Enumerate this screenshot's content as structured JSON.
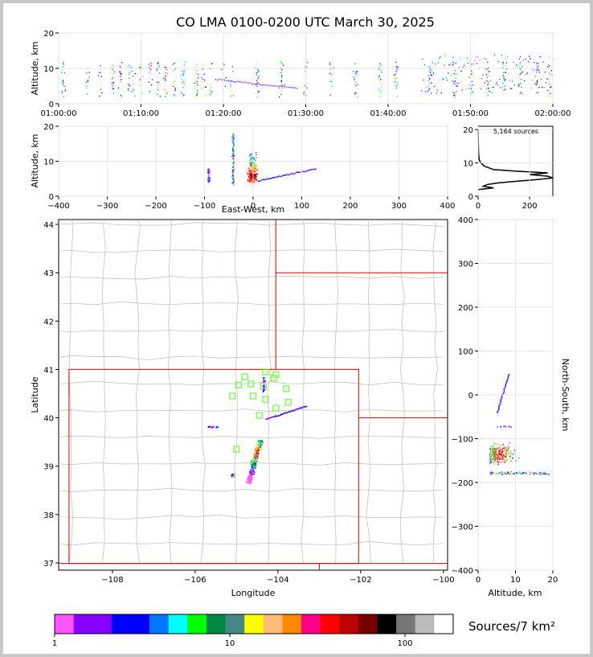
{
  "chart_data": {
    "type": "lma_multipanel",
    "title": "CO LMA 0100-0200 UTC March 30, 2025",
    "time_height": {
      "ylabel": "Altitude, km",
      "ylim": [
        0,
        20
      ],
      "ytick_labels": [
        "0",
        "10",
        "20"
      ],
      "xlim_minutes": [
        0,
        60
      ],
      "xtick_labels": [
        "01:00:00",
        "01:10:00",
        "01:20:00",
        "01:30:00",
        "01:40:00",
        "01:50:00",
        "02:00:00"
      ]
    },
    "ew_height": {
      "ylabel": "Altitude, km",
      "xlabel": "East-West, km",
      "xlim": [
        -400,
        400
      ],
      "ylim": [
        0,
        20
      ],
      "xtick_labels": [
        "−400",
        "−300",
        "−200",
        "−100",
        "0",
        "100",
        "200",
        "300",
        "400"
      ],
      "ytick_labels": [
        "0",
        "10",
        "20"
      ]
    },
    "histogram": {
      "annotation": "5,164 sources",
      "xlim": [
        0,
        290
      ],
      "ylim": [
        0,
        21
      ],
      "xtick_labels": [
        "0",
        "200"
      ],
      "ytick_labels": [
        "0",
        "10",
        "20"
      ],
      "profile": [
        [
          0,
          2
        ],
        [
          60,
          2.5
        ],
        [
          20,
          3
        ],
        [
          35,
          3.5
        ],
        [
          80,
          4
        ],
        [
          150,
          4.5
        ],
        [
          230,
          5
        ],
        [
          290,
          5.5
        ],
        [
          270,
          6
        ],
        [
          200,
          6.5
        ],
        [
          270,
          7
        ],
        [
          150,
          7.5
        ],
        [
          60,
          8
        ],
        [
          25,
          9
        ],
        [
          10,
          10
        ],
        [
          4,
          11
        ],
        [
          2,
          13
        ],
        [
          1,
          16
        ],
        [
          0,
          20
        ]
      ]
    },
    "plan_view": {
      "xlabel": "Longitude",
      "ylabel": "Latitude",
      "xlim": [
        -109.3,
        -99.9
      ],
      "ylim": [
        36.85,
        44.1
      ],
      "xtick_labels": [
        "−108",
        "−106",
        "−104",
        "−102",
        "−100"
      ],
      "ytick_labels": [
        "37",
        "38",
        "39",
        "40",
        "41",
        "42",
        "43",
        "44"
      ],
      "state_line_color": "#dd0000",
      "county_line_color": "#bbbbbb",
      "station_color": "#66ff33",
      "stations": [
        [
          -104.8,
          40.85
        ],
        [
          -104.3,
          40.95
        ],
        [
          -104.05,
          40.9
        ],
        [
          -104.1,
          40.82
        ],
        [
          -104.65,
          40.7
        ],
        [
          -104.95,
          40.68
        ],
        [
          -104.35,
          40.65
        ],
        [
          -103.8,
          40.6
        ],
        [
          -105.1,
          40.45
        ],
        [
          -104.6,
          40.45
        ],
        [
          -104.3,
          40.38
        ],
        [
          -103.75,
          40.32
        ],
        [
          -104.05,
          40.2
        ],
        [
          -104.45,
          40.05
        ],
        [
          -105.0,
          39.35
        ]
      ]
    },
    "ns_height": {
      "xlabel": "Altitude, km",
      "ylabel": "North-South, km",
      "xlim": [
        0,
        20
      ],
      "ylim": [
        -400,
        400
      ],
      "xtick_labels": [
        "0",
        "10",
        "20"
      ],
      "ytick_labels": [
        "−400",
        "−300",
        "−200",
        "−100",
        "0",
        "100",
        "200",
        "300",
        "400"
      ]
    },
    "colorbar": {
      "label": "Sources/7 km²",
      "tick_labels": [
        "1",
        "10",
        "100"
      ],
      "colors": [
        "#ff55ff",
        "#8800ff",
        "#8800ff",
        "#0000ff",
        "#0000ff",
        "#0077ff",
        "#00ffff",
        "#00ff00",
        "#008844",
        "#448888",
        "#ffff00",
        "#ffbb77",
        "#ff8800",
        "#ff0088",
        "#ff0000",
        "#bb0000",
        "#770000",
        "#000000",
        "#777777",
        "#bbbbbb",
        "#ffffff"
      ]
    }
  }
}
